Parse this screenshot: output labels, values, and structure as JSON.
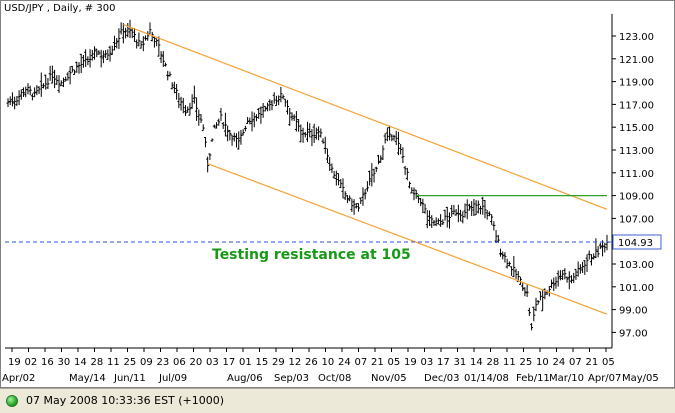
{
  "title": "USD/JPY , Daily, # 300",
  "status": {
    "text": "07 May 2008 10:33:36  EST (+1000)"
  },
  "colors": {
    "price": "#000000",
    "channel": "#f5a030",
    "resistance_line": "#2ea02e",
    "current_level": "#3050e0",
    "annotation": "#169a16",
    "label_box": "#4060d0"
  },
  "chart_data": {
    "type": "line",
    "style": "ohlc-bars",
    "title": "USD/JPY , Daily, # 300",
    "ylim": [
      95.5,
      125.5
    ],
    "y_ticks": [
      "123.00",
      "121.00",
      "119.00",
      "117.00",
      "115.00",
      "113.00",
      "111.00",
      "109.00",
      "107.00",
      "105.00",
      "103.00",
      "101.00",
      "99.00",
      "97.00"
    ],
    "y_tick_values": [
      123,
      121,
      119,
      117,
      115,
      113,
      111,
      109,
      107,
      105,
      103,
      101,
      99,
      97
    ],
    "x_top_labels": [
      "19",
      "02",
      "16",
      "30",
      "14",
      "28",
      "11",
      "25",
      "09",
      "23",
      "06",
      "20",
      "03",
      "17",
      "01",
      "15",
      "29",
      "12",
      "26",
      "10",
      "24",
      "07",
      "21",
      "05",
      "19",
      "03",
      "17",
      "31",
      "14",
      "28",
      "11",
      "25",
      "10",
      "24",
      "07",
      "21",
      "05"
    ],
    "x_bottom_labels": [
      "Apr/02",
      "May/14",
      "Jun/11",
      "Jul/09",
      "Aug/06",
      "Sep/03",
      "Oct/08",
      "Nov/05",
      "Dec/03",
      "01/14/08",
      "Feb/11",
      "Mar/10",
      "Apr/07",
      "May/05"
    ],
    "price_path": [
      [
        0,
        117.2
      ],
      [
        4,
        117.5
      ],
      [
        8,
        118.4
      ],
      [
        12,
        117.8
      ],
      [
        16,
        118.6
      ],
      [
        20,
        119.6
      ],
      [
        24,
        118.9
      ],
      [
        28,
        119.8
      ],
      [
        32,
        120.4
      ],
      [
        36,
        120.8
      ],
      [
        40,
        121.6
      ],
      [
        44,
        121.2
      ],
      [
        48,
        122.3
      ],
      [
        52,
        123.6
      ],
      [
        56,
        123.3
      ],
      [
        60,
        122.0
      ],
      [
        64,
        123.5
      ],
      [
        68,
        122.0
      ],
      [
        72,
        119.8
      ],
      [
        76,
        118.0
      ],
      [
        80,
        116.5
      ],
      [
        84,
        117.3
      ],
      [
        88,
        115.0
      ],
      [
        90,
        111.8
      ],
      [
        93,
        114.8
      ],
      [
        96,
        115.8
      ],
      [
        100,
        114.5
      ],
      [
        104,
        113.6
      ],
      [
        108,
        115.6
      ],
      [
        112,
        116.0
      ],
      [
        116,
        116.4
      ],
      [
        120,
        117.4
      ],
      [
        124,
        117.8
      ],
      [
        128,
        116.0
      ],
      [
        132,
        114.6
      ],
      [
        136,
        114.4
      ],
      [
        140,
        114.6
      ],
      [
        142,
        113.9
      ],
      [
        146,
        111.3
      ],
      [
        150,
        109.8
      ],
      [
        154,
        108.5
      ],
      [
        158,
        107.8
      ],
      [
        162,
        109.9
      ],
      [
        166,
        111.3
      ],
      [
        170,
        113.8
      ],
      [
        174,
        114.4
      ],
      [
        178,
        112.4
      ],
      [
        182,
        109.2
      ],
      [
        186,
        108.6
      ],
      [
        190,
        106.8
      ],
      [
        194,
        106.6
      ],
      [
        198,
        107.1
      ],
      [
        202,
        107.6
      ],
      [
        206,
        107.4
      ],
      [
        210,
        108.1
      ],
      [
        214,
        108.0
      ],
      [
        218,
        106.9
      ],
      [
        222,
        104.2
      ],
      [
        226,
        103.0
      ],
      [
        230,
        101.8
      ],
      [
        234,
        100.4
      ],
      [
        236,
        97.3
      ],
      [
        238,
        99.5
      ],
      [
        242,
        100.4
      ],
      [
        246,
        101.4
      ],
      [
        250,
        102.2
      ],
      [
        254,
        101.6
      ],
      [
        258,
        102.6
      ],
      [
        262,
        103.6
      ],
      [
        266,
        104.1
      ],
      [
        270,
        104.9
      ]
    ],
    "n_days": 270,
    "channel_upper": {
      "x0": 52,
      "y0": 124.0,
      "x1": 270,
      "y1": 107.8
    },
    "channel_lower": {
      "x0": 90,
      "y0": 111.8,
      "x1": 270,
      "y1": 98.6
    },
    "resistance_segment": {
      "x0": 184,
      "y0": 109.0,
      "x1": 270,
      "y1": 109.0
    },
    "current_level": 104.93,
    "current_label": "104.93",
    "annotation": "Testing resistance at 105"
  }
}
